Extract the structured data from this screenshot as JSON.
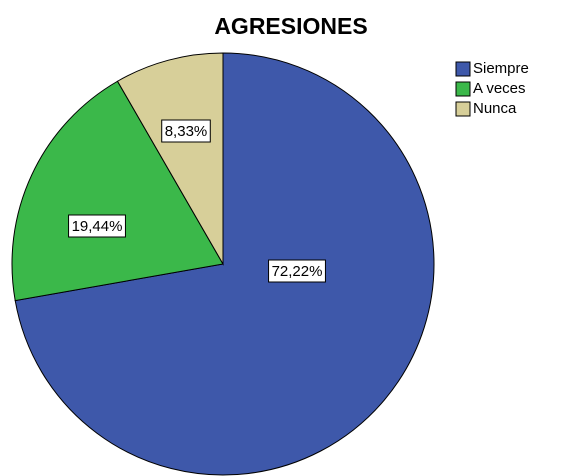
{
  "chart_data": {
    "type": "pie",
    "title": "AGRESIONES",
    "categories": [
      "Siempre",
      "A veces",
      "Nunca"
    ],
    "values": [
      72.22,
      19.44,
      8.33
    ],
    "value_labels": [
      "72,22%",
      "19,44%",
      "8,33%"
    ],
    "colors": [
      "#3e58aa",
      "#3bb84a",
      "#d7cf99"
    ],
    "legend": "top-right"
  }
}
